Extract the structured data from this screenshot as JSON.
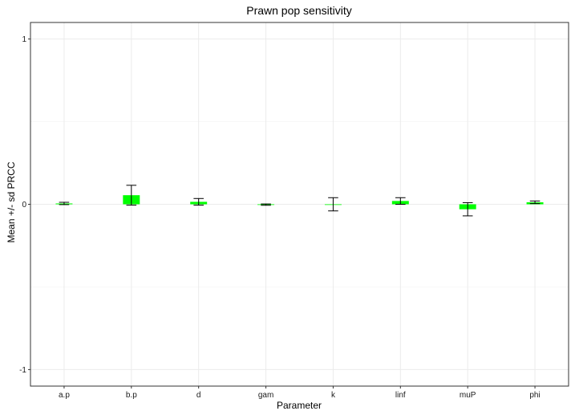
{
  "chart_data": {
    "type": "bar",
    "title": "Prawn pop sensitivity",
    "xlabel": "Parameter",
    "ylabel": "Mean +/- sd PRCC",
    "ylim": [
      -1.1,
      1.1
    ],
    "yticks": [
      -1,
      0,
      1
    ],
    "grid": true,
    "categories": [
      "a.p",
      "b.p",
      "d",
      "gam",
      "k",
      "linf",
      "muP",
      "phi"
    ],
    "series": [
      {
        "values": [
          0.005,
          0.055,
          0.015,
          -0.002,
          0.0,
          0.02,
          -0.03,
          0.012
        ],
        "sd": [
          0.007,
          0.06,
          0.02,
          0.004,
          0.04,
          0.02,
          0.04,
          0.008
        ]
      }
    ],
    "colors": {
      "bar": "#00ff00",
      "errorbar": "#000000",
      "grid": "#ebebeb",
      "panel_border": "#333333"
    }
  }
}
